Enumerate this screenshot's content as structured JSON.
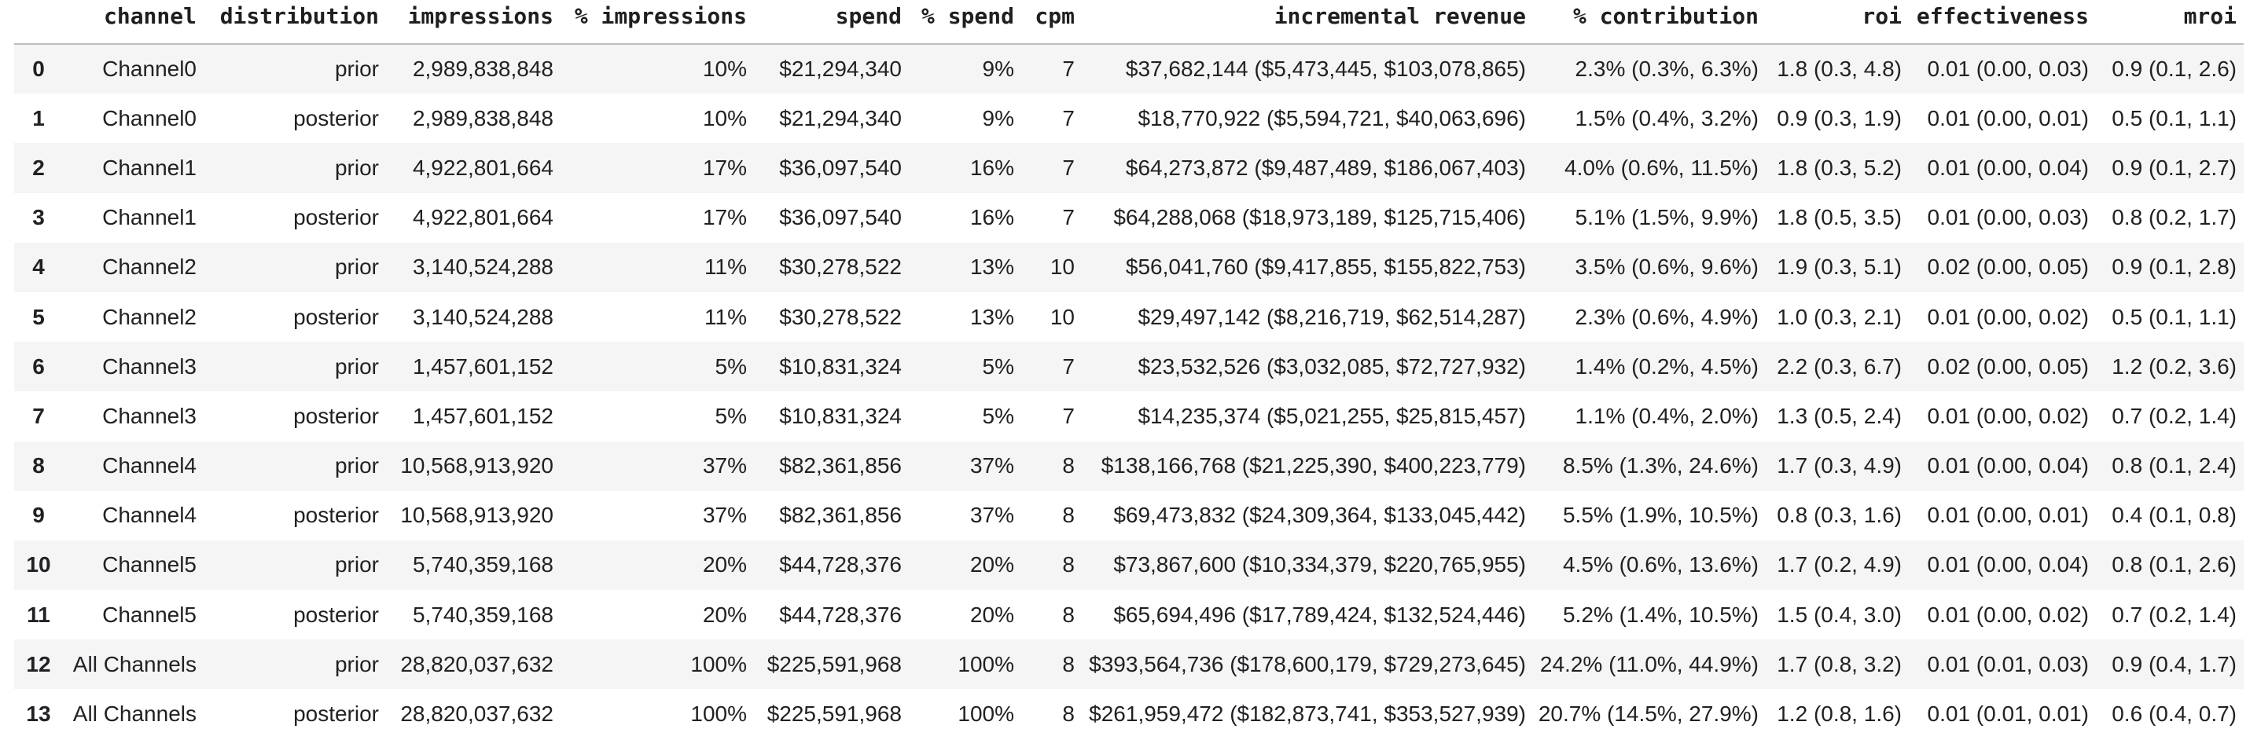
{
  "style": {
    "row_alt_bg": "#f5f5f5",
    "row_bg": "#ffffff",
    "header_border_color": "#bdbdbd",
    "text_color": "#202124",
    "header_text_color": "#1f1f1f"
  },
  "chart_data": {
    "type": "table",
    "columns": [
      "",
      "channel",
      "distribution",
      "impressions",
      "% impressions",
      "spend",
      "% spend",
      "cpm",
      "incremental revenue",
      "% contribution",
      "roi",
      "effectiveness",
      "mroi"
    ],
    "column_keys": [
      "index",
      "channel",
      "distribution",
      "impressions",
      "pct-impressions",
      "spend",
      "pct-spend",
      "cpm",
      "incremental-revenue",
      "pct-contribution",
      "roi",
      "effectiveness",
      "mroi"
    ],
    "rows": [
      [
        "0",
        "Channel0",
        "prior",
        "2,989,838,848",
        "10%",
        "$21,294,340",
        "9%",
        "7",
        "$37,682,144 ($5,473,445, $103,078,865)",
        "2.3% (0.3%, 6.3%)",
        "1.8 (0.3, 4.8)",
        "0.01 (0.00, 0.03)",
        "0.9 (0.1, 2.6)"
      ],
      [
        "1",
        "Channel0",
        "posterior",
        "2,989,838,848",
        "10%",
        "$21,294,340",
        "9%",
        "7",
        "$18,770,922 ($5,594,721, $40,063,696)",
        "1.5% (0.4%, 3.2%)",
        "0.9 (0.3, 1.9)",
        "0.01 (0.00, 0.01)",
        "0.5 (0.1, 1.1)"
      ],
      [
        "2",
        "Channel1",
        "prior",
        "4,922,801,664",
        "17%",
        "$36,097,540",
        "16%",
        "7",
        "$64,273,872 ($9,487,489, $186,067,403)",
        "4.0% (0.6%, 11.5%)",
        "1.8 (0.3, 5.2)",
        "0.01 (0.00, 0.04)",
        "0.9 (0.1, 2.7)"
      ],
      [
        "3",
        "Channel1",
        "posterior",
        "4,922,801,664",
        "17%",
        "$36,097,540",
        "16%",
        "7",
        "$64,288,068 ($18,973,189, $125,715,406)",
        "5.1% (1.5%, 9.9%)",
        "1.8 (0.5, 3.5)",
        "0.01 (0.00, 0.03)",
        "0.8 (0.2, 1.7)"
      ],
      [
        "4",
        "Channel2",
        "prior",
        "3,140,524,288",
        "11%",
        "$30,278,522",
        "13%",
        "10",
        "$56,041,760 ($9,417,855, $155,822,753)",
        "3.5% (0.6%, 9.6%)",
        "1.9 (0.3, 5.1)",
        "0.02 (0.00, 0.05)",
        "0.9 (0.1, 2.8)"
      ],
      [
        "5",
        "Channel2",
        "posterior",
        "3,140,524,288",
        "11%",
        "$30,278,522",
        "13%",
        "10",
        "$29,497,142 ($8,216,719, $62,514,287)",
        "2.3% (0.6%, 4.9%)",
        "1.0 (0.3, 2.1)",
        "0.01 (0.00, 0.02)",
        "0.5 (0.1, 1.1)"
      ],
      [
        "6",
        "Channel3",
        "prior",
        "1,457,601,152",
        "5%",
        "$10,831,324",
        "5%",
        "7",
        "$23,532,526 ($3,032,085, $72,727,932)",
        "1.4% (0.2%, 4.5%)",
        "2.2 (0.3, 6.7)",
        "0.02 (0.00, 0.05)",
        "1.2 (0.2, 3.6)"
      ],
      [
        "7",
        "Channel3",
        "posterior",
        "1,457,601,152",
        "5%",
        "$10,831,324",
        "5%",
        "7",
        "$14,235,374 ($5,021,255, $25,815,457)",
        "1.1% (0.4%, 2.0%)",
        "1.3 (0.5, 2.4)",
        "0.01 (0.00, 0.02)",
        "0.7 (0.2, 1.4)"
      ],
      [
        "8",
        "Channel4",
        "prior",
        "10,568,913,920",
        "37%",
        "$82,361,856",
        "37%",
        "8",
        "$138,166,768 ($21,225,390, $400,223,779)",
        "8.5% (1.3%, 24.6%)",
        "1.7 (0.3, 4.9)",
        "0.01 (0.00, 0.04)",
        "0.8 (0.1, 2.4)"
      ],
      [
        "9",
        "Channel4",
        "posterior",
        "10,568,913,920",
        "37%",
        "$82,361,856",
        "37%",
        "8",
        "$69,473,832 ($24,309,364, $133,045,442)",
        "5.5% (1.9%, 10.5%)",
        "0.8 (0.3, 1.6)",
        "0.01 (0.00, 0.01)",
        "0.4 (0.1, 0.8)"
      ],
      [
        "10",
        "Channel5",
        "prior",
        "5,740,359,168",
        "20%",
        "$44,728,376",
        "20%",
        "8",
        "$73,867,600 ($10,334,379, $220,765,955)",
        "4.5% (0.6%, 13.6%)",
        "1.7 (0.2, 4.9)",
        "0.01 (0.00, 0.04)",
        "0.8 (0.1, 2.6)"
      ],
      [
        "11",
        "Channel5",
        "posterior",
        "5,740,359,168",
        "20%",
        "$44,728,376",
        "20%",
        "8",
        "$65,694,496 ($17,789,424, $132,524,446)",
        "5.2% (1.4%, 10.5%)",
        "1.5 (0.4, 3.0)",
        "0.01 (0.00, 0.02)",
        "0.7 (0.2, 1.4)"
      ],
      [
        "12",
        "All Channels",
        "prior",
        "28,820,037,632",
        "100%",
        "$225,591,968",
        "100%",
        "8",
        "$393,564,736 ($178,600,179, $729,273,645)",
        "24.2% (11.0%, 44.9%)",
        "1.7 (0.8, 3.2)",
        "0.01 (0.01, 0.03)",
        "0.9 (0.4, 1.7)"
      ],
      [
        "13",
        "All Channels",
        "posterior",
        "28,820,037,632",
        "100%",
        "$225,591,968",
        "100%",
        "8",
        "$261,959,472 ($182,873,741, $353,527,939)",
        "20.7% (14.5%, 27.9%)",
        "1.2 (0.8, 1.6)",
        "0.01 (0.01, 0.01)",
        "0.6 (0.4, 0.7)"
      ]
    ]
  }
}
